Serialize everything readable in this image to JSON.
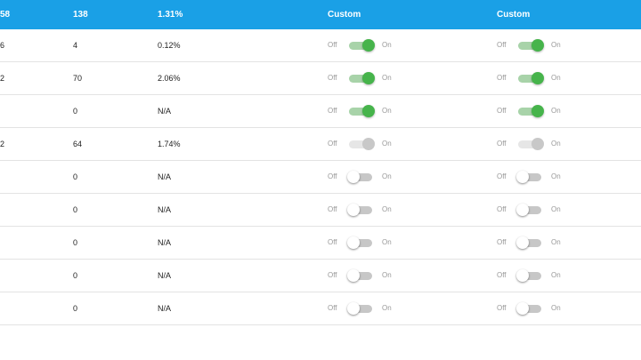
{
  "header": {
    "col0": "58",
    "col1": "138",
    "col2": "1.31%",
    "col3": "Custom",
    "col4": "Custom"
  },
  "toggle_labels": {
    "off": "Off",
    "on": "On"
  },
  "rows": [
    {
      "col0": "6",
      "col1": "4",
      "col2": "0.12%",
      "toggle_a": "on",
      "toggle_b": "on"
    },
    {
      "col0": "2",
      "col1": "70",
      "col2": "2.06%",
      "toggle_a": "on",
      "toggle_b": "on"
    },
    {
      "col0": "",
      "col1": "0",
      "col2": "N/A",
      "toggle_a": "on",
      "toggle_b": "on"
    },
    {
      "col0": "2",
      "col1": "64",
      "col2": "1.74%",
      "toggle_a": "disabled",
      "toggle_b": "disabled"
    },
    {
      "col0": "",
      "col1": "0",
      "col2": "N/A",
      "toggle_a": "off",
      "toggle_b": "off"
    },
    {
      "col0": "",
      "col1": "0",
      "col2": "N/A",
      "toggle_a": "off",
      "toggle_b": "off"
    },
    {
      "col0": "",
      "col1": "0",
      "col2": "N/A",
      "toggle_a": "off",
      "toggle_b": "off"
    },
    {
      "col0": "",
      "col1": "0",
      "col2": "N/A",
      "toggle_a": "off",
      "toggle_b": "off"
    },
    {
      "col0": "",
      "col1": "0",
      "col2": "N/A",
      "toggle_a": "off",
      "toggle_b": "off"
    }
  ],
  "colors": {
    "header_bg": "#1aa0e6",
    "toggle_on": "#46b44b",
    "toggle_on_track": "#a8d3a9",
    "toggle_off_track": "#c7c7c7"
  }
}
